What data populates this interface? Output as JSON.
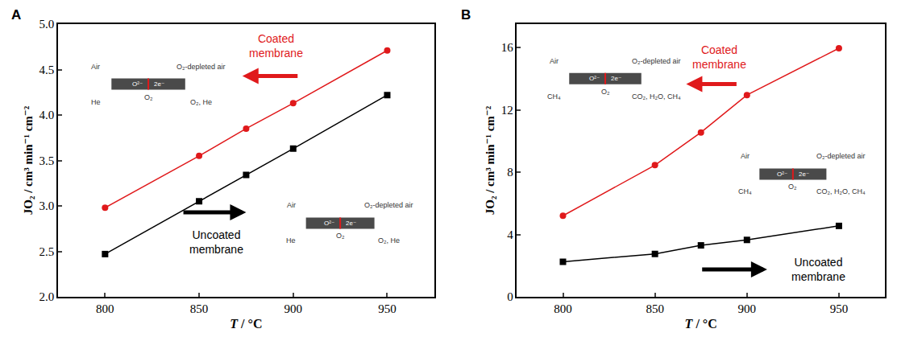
{
  "chart_data": [
    {
      "type": "line",
      "panel": "A",
      "x_label": "T / °C",
      "y_label": "JO₂ / cm³ min⁻¹ cm⁻²",
      "x": [
        800,
        850,
        875,
        900,
        950
      ],
      "series": [
        {
          "name": "Coated membrane",
          "color": "#e0191b",
          "marker": "circle",
          "values": [
            2.98,
            3.55,
            3.85,
            4.13,
            4.71
          ]
        },
        {
          "name": "Uncoated membrane",
          "color": "#000000",
          "marker": "square",
          "values": [
            2.47,
            3.05,
            3.34,
            3.63,
            4.22
          ]
        }
      ],
      "xlim": [
        775,
        975
      ],
      "xticks": [
        800,
        850,
        900,
        950
      ],
      "ylim": [
        2.0,
        5.0
      ],
      "yticks": [
        {
          "value": 2.0,
          "label": "2.0"
        },
        {
          "value": 2.5,
          "label": "2.5"
        },
        {
          "value": 3.0,
          "label": "3.0"
        },
        {
          "value": 3.5,
          "label": "3.5"
        },
        {
          "value": 4.0,
          "label": "4.0"
        },
        {
          "value": 4.5,
          "label": "4.5"
        },
        {
          "value": 5.0,
          "label": "5.0"
        }
      ],
      "grid": false,
      "inset_labels": [
        "Air",
        "O₂-depleted air",
        "He",
        "O₂, He",
        "O²⁻",
        "2e⁻",
        "O₂"
      ]
    },
    {
      "type": "line",
      "panel": "B",
      "x_label": "T / °C",
      "y_label": "JO₂ / cm³ min⁻¹ cm⁻²",
      "x": [
        800,
        850,
        875,
        900,
        950
      ],
      "series": [
        {
          "name": "Coated membrane",
          "color": "#e0191b",
          "marker": "circle",
          "values": [
            5.2,
            8.45,
            10.55,
            12.95,
            15.95
          ]
        },
        {
          "name": "Uncoated membrane",
          "color": "#000000",
          "marker": "square",
          "values": [
            2.25,
            2.75,
            3.3,
            3.65,
            4.55
          ]
        }
      ],
      "xlim": [
        775,
        975
      ],
      "xticks": [
        800,
        850,
        900,
        950
      ],
      "ylim": [
        0,
        17.5
      ],
      "yticks": [
        0,
        4,
        8,
        12,
        16
      ],
      "grid": false,
      "inset_labels": [
        "Air",
        "O₂-depleted air",
        "CH₄",
        "CO₂, H₂O, CH₄",
        "O²⁻",
        "2e⁻",
        "O₂"
      ]
    }
  ]
}
